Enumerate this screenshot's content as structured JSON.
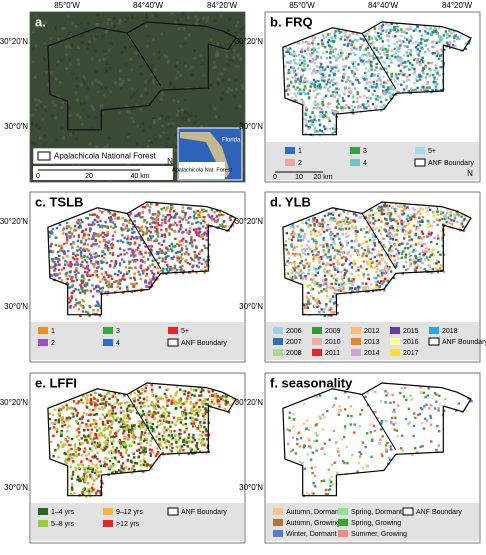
{
  "lon_labels": [
    "85°0'W",
    "84°40'W",
    "84°20'W"
  ],
  "lat_labels": [
    "30°20'N",
    "30°0'N"
  ],
  "panels": [
    {
      "title": "a.",
      "legend": [
        {
          "label": "Apalachicola National Forest"
        }
      ],
      "scale": [
        "0",
        "20",
        "40 km"
      ],
      "north": "N",
      "inset": [
        "Florida",
        "Apalachicola Nat. Forest"
      ]
    },
    {
      "title": "b. FRQ",
      "legend": [
        {
          "label": "1",
          "color": "#2a6fc4"
        },
        {
          "label": "2",
          "color": "#f4a3a3"
        },
        {
          "label": "3",
          "color": "#3a9f46"
        },
        {
          "label": "4",
          "color": "#6fc7c0"
        },
        {
          "label": "5+",
          "color": "#a7d8f0"
        },
        {
          "label": "ANF Boundary"
        }
      ],
      "scale": [
        "0",
        "10",
        "20 km"
      ],
      "north": "N"
    },
    {
      "title": "c. TSLB",
      "legend": [
        {
          "label": "1",
          "color": "#f28a1e"
        },
        {
          "label": "2",
          "color": "#9b4fc1"
        },
        {
          "label": "3",
          "color": "#3ca63c"
        },
        {
          "label": "4",
          "color": "#2b6fd0"
        },
        {
          "label": "5+",
          "color": "#e8262a"
        },
        {
          "label": "ANF Boundary"
        }
      ]
    },
    {
      "title": "d. YLB",
      "legend": [
        {
          "label": "2006",
          "color": "#a6cce8"
        },
        {
          "label": "2007",
          "color": "#2c72b8"
        },
        {
          "label": "2008",
          "color": "#a9d98a"
        },
        {
          "label": "2009",
          "color": "#2e9a3a"
        },
        {
          "label": "2010",
          "color": "#f7a7a7"
        },
        {
          "label": "2011",
          "color": "#e3262a"
        },
        {
          "label": "2012",
          "color": "#f9be6a"
        },
        {
          "label": "2013",
          "color": "#ef8220"
        },
        {
          "label": "2014",
          "color": "#c9a8d6"
        },
        {
          "label": "2015",
          "color": "#6a3c98"
        },
        {
          "label": "2016",
          "color": "#ffff9a"
        },
        {
          "label": "2017",
          "color": "#f5e030"
        },
        {
          "label": "2018",
          "color": "#29a9e0"
        },
        {
          "label": "ANF Boundary"
        }
      ]
    },
    {
      "title": "e. LFFI",
      "legend": [
        {
          "label": "1–4 yrs",
          "color": "#1e6b1e"
        },
        {
          "label": "5–8 yrs",
          "color": "#9acd32"
        },
        {
          "label": "9–12 yrs",
          "color": "#f5b43a"
        },
        {
          "label": ">12 yrs",
          "color": "#e8262a"
        },
        {
          "label": "ANF Boundary"
        }
      ]
    },
    {
      "title": "f. seasonality",
      "legend": [
        {
          "label": "Autumn, Dormant",
          "color": "#f7c48a"
        },
        {
          "label": "Autumn, Growing",
          "color": "#b8732a"
        },
        {
          "label": "Winter, Dormant",
          "color": "#5a7bd6"
        },
        {
          "label": "Spring, Dormant",
          "color": "#8fe38f"
        },
        {
          "label": "Spring, Growing",
          "color": "#2faa2f"
        },
        {
          "label": "Summer, Growing",
          "color": "#f08a8a"
        },
        {
          "label": "ANF Boundary"
        }
      ]
    }
  ]
}
